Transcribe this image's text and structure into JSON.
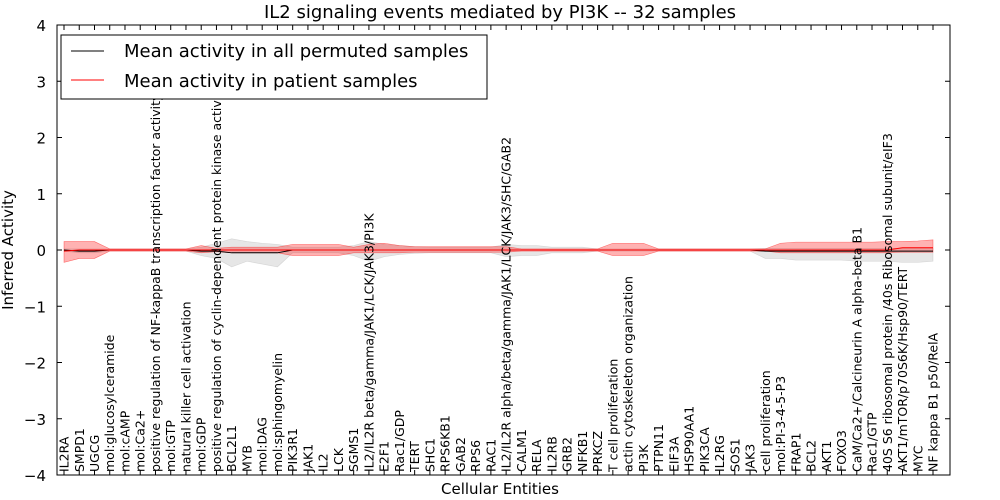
{
  "chart_data": {
    "type": "line",
    "title": "IL2 signaling events mediated by PI3K -- 32 samples",
    "xlabel": "Cellular Entities",
    "ylabel": "Inferred Activity",
    "ylim": [
      -4,
      4
    ],
    "yticks": [
      -4,
      -3,
      -2,
      -1,
      0,
      1,
      2,
      3,
      4
    ],
    "grid": false,
    "legend_position": "top-left",
    "categories": [
      "IL2RA",
      "SMPD1",
      "UGCG",
      "mol:glucosylceramide",
      "mol:cAMP",
      "mol:Ca2+",
      "positive regulation of NF-kappaB transcription factor activity",
      "mol:GTP",
      "natural killer cell activation",
      "mol:GDP",
      "positive regulation of cyclin-dependent protein kinase activity",
      "BCL2L1",
      "MYB",
      "mol:DAG",
      "mol:sphingomyelin",
      "PIK3R1",
      "JAK1",
      "IL2",
      "LCK",
      "SGMS1",
      "IL2/IL2R beta/gamma/JAK1/LCK/JAK3/PI3K",
      "E2F1",
      "Rac1/GDP",
      "TERT",
      "SHC1",
      "RPS6KB1",
      "GAB2",
      "RPS6",
      "RAC1",
      "IL2/IL2R alpha/beta/gamma/JAK1/LCK/JAK3/SHC/GAB2",
      "CALM1",
      "RELA",
      "IL2RB",
      "GRB2",
      "NFKB1",
      "PRKCZ",
      "T cell proliferation",
      "actin cytoskeleton organization",
      "PI3K",
      "PTPN11",
      "EIF3A",
      "HSP90AA1",
      "PIK3CA",
      "IL2RG",
      "SOS1",
      "JAK3",
      "cell proliferation",
      "mol:PI-3-4-5-P3",
      "FRAP1",
      "BCL2",
      "AKT1",
      "FOXO3",
      "CaM/Ca2+/Calcineurin A alpha-beta B1",
      "Rac1/GTP",
      "40S S6 ribosomal protein /40s Ribosomal subunit/eIF3",
      "AKT1/mTOR/p70S6K/Hsp90/TERT",
      "MYC",
      "NF kappa B1 p50/RelA"
    ],
    "series": [
      {
        "name": "Mean activity in all permuted samples",
        "color": "#000000",
        "values": [
          0.0,
          -0.02,
          -0.02,
          0.0,
          0.0,
          0.0,
          0.0,
          0.0,
          0.0,
          -0.02,
          -0.02,
          -0.05,
          -0.05,
          -0.05,
          -0.05,
          0.0,
          0.0,
          0.0,
          0.0,
          0.0,
          0.0,
          0.0,
          0.0,
          0.0,
          0.0,
          0.0,
          0.0,
          0.0,
          0.0,
          0.0,
          0.0,
          0.0,
          0.0,
          0.0,
          0.0,
          0.0,
          0.0,
          0.0,
          0.0,
          0.0,
          0.0,
          0.0,
          0.0,
          0.0,
          0.0,
          0.0,
          -0.02,
          -0.02,
          -0.02,
          -0.02,
          -0.02,
          -0.02,
          -0.02,
          -0.02,
          -0.02,
          -0.02,
          -0.02,
          -0.02
        ],
        "band_low": [
          -0.02,
          -0.05,
          -0.05,
          -0.02,
          -0.02,
          -0.02,
          -0.02,
          -0.02,
          -0.02,
          -0.1,
          -0.15,
          -0.3,
          -0.2,
          -0.25,
          -0.3,
          -0.05,
          -0.05,
          -0.05,
          -0.05,
          -0.1,
          -0.2,
          -0.12,
          -0.08,
          -0.06,
          -0.05,
          -0.05,
          -0.05,
          -0.05,
          -0.05,
          -0.12,
          -0.1,
          -0.1,
          -0.05,
          -0.05,
          -0.05,
          -0.02,
          -0.02,
          -0.02,
          -0.02,
          -0.02,
          -0.02,
          -0.02,
          -0.02,
          -0.02,
          -0.02,
          -0.02,
          -0.15,
          -0.15,
          -0.18,
          -0.18,
          -0.18,
          -0.18,
          -0.2,
          -0.2,
          -0.2,
          -0.22,
          -0.22,
          -0.2
        ],
        "band_high": [
          0.02,
          0.02,
          0.02,
          0.02,
          0.02,
          0.02,
          0.02,
          0.02,
          0.02,
          0.05,
          0.12,
          0.2,
          0.15,
          0.12,
          0.1,
          0.05,
          0.05,
          0.05,
          0.05,
          0.08,
          0.15,
          0.1,
          0.08,
          0.06,
          0.05,
          0.05,
          0.05,
          0.05,
          0.05,
          0.1,
          0.08,
          0.08,
          0.05,
          0.05,
          0.05,
          0.02,
          0.02,
          0.02,
          0.02,
          0.02,
          0.02,
          0.02,
          0.02,
          0.02,
          0.02,
          0.02,
          0.03,
          0.03,
          0.03,
          0.03,
          0.03,
          0.03,
          0.03,
          0.03,
          0.03,
          0.03,
          0.03,
          0.03
        ]
      },
      {
        "name": "Mean activity in patient samples",
        "color": "#ff0000",
        "values": [
          -0.02,
          0.0,
          0.0,
          0.0,
          0.0,
          0.0,
          0.0,
          0.0,
          0.0,
          0.0,
          0.0,
          0.0,
          0.0,
          0.0,
          0.0,
          0.0,
          0.0,
          0.0,
          0.0,
          0.0,
          0.0,
          0.0,
          0.0,
          0.0,
          0.0,
          0.0,
          0.0,
          0.0,
          0.0,
          0.0,
          0.0,
          0.0,
          0.0,
          0.0,
          0.0,
          0.0,
          0.0,
          0.0,
          0.0,
          0.0,
          0.0,
          0.0,
          0.0,
          0.0,
          0.0,
          0.0,
          0.0,
          0.0,
          0.0,
          0.0,
          0.0,
          0.0,
          0.0,
          0.0,
          0.0,
          0.04,
          0.04,
          0.04
        ],
        "band_low": [
          -0.22,
          -0.15,
          -0.15,
          -0.02,
          -0.02,
          -0.02,
          -0.02,
          -0.02,
          -0.02,
          -0.05,
          -0.03,
          -0.05,
          -0.05,
          -0.05,
          -0.05,
          -0.1,
          -0.1,
          -0.1,
          -0.1,
          -0.05,
          -0.05,
          -0.05,
          -0.05,
          -0.04,
          -0.04,
          -0.04,
          -0.04,
          -0.04,
          -0.04,
          -0.04,
          -0.02,
          -0.02,
          -0.02,
          -0.02,
          -0.02,
          -0.02,
          -0.1,
          -0.1,
          -0.1,
          -0.02,
          -0.02,
          -0.02,
          -0.02,
          -0.02,
          -0.02,
          -0.02,
          -0.02,
          -0.05,
          -0.05,
          -0.05,
          -0.05,
          -0.05,
          -0.05,
          -0.05,
          -0.05,
          -0.04,
          -0.04,
          -0.04
        ],
        "band_high": [
          0.15,
          0.15,
          0.15,
          0.02,
          0.02,
          0.02,
          0.02,
          0.02,
          0.02,
          0.08,
          0.03,
          0.05,
          0.05,
          0.05,
          0.05,
          0.1,
          0.1,
          0.1,
          0.1,
          0.05,
          0.1,
          0.12,
          0.08,
          0.06,
          0.06,
          0.06,
          0.06,
          0.06,
          0.06,
          0.06,
          0.02,
          0.02,
          0.02,
          0.02,
          0.02,
          0.02,
          0.12,
          0.12,
          0.12,
          0.02,
          0.02,
          0.02,
          0.02,
          0.02,
          0.02,
          0.02,
          0.02,
          0.12,
          0.14,
          0.14,
          0.14,
          0.14,
          0.14,
          0.14,
          0.15,
          0.15,
          0.16,
          0.18
        ]
      }
    ]
  }
}
